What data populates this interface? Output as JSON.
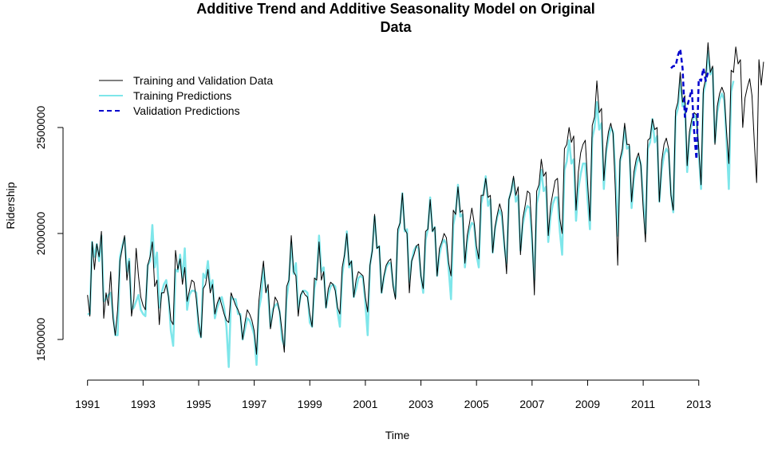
{
  "chart_data": {
    "type": "line",
    "title_line1": "Additive Trend and Additive Seasonality Model on Original",
    "title_line2": "Data",
    "xlabel": "Time",
    "ylabel": "Ridership",
    "xlim": [
      1991,
      2013.5
    ],
    "ylim": [
      1350000,
      2900000
    ],
    "x_ticks": [
      1991,
      1993,
      1995,
      1997,
      1999,
      2001,
      2003,
      2005,
      2007,
      2009,
      2011,
      2013
    ],
    "x_tick_labels": [
      "1991",
      "1993",
      "1995",
      "1997",
      "1999",
      "2001",
      "2003",
      "2005",
      "2007",
      "2009",
      "2011",
      "2013"
    ],
    "y_ticks": [
      1500000,
      2000000,
      2500000
    ],
    "y_tick_labels": [
      "1500000",
      "2000000",
      "2500000"
    ],
    "legend_position": "top-left",
    "series": [
      {
        "name": "Training and Validation Data",
        "color": "#000000",
        "style": "solid",
        "start": 1991.0,
        "step": 0.08333,
        "values": [
          1710000,
          1610000,
          1960000,
          1830000,
          1950000,
          1890000,
          2010000,
          1600000,
          1720000,
          1660000,
          1820000,
          1600000,
          1520000,
          1640000,
          1870000,
          1930000,
          1990000,
          1780000,
          1870000,
          1610000,
          1690000,
          1930000,
          1800000,
          1700000,
          1660000,
          1640000,
          1850000,
          1890000,
          1960000,
          1750000,
          1780000,
          1570000,
          1720000,
          1720000,
          1760000,
          1700000,
          1590000,
          1570000,
          1920000,
          1830000,
          1880000,
          1760000,
          1840000,
          1680000,
          1730000,
          1780000,
          1770000,
          1690000,
          1580000,
          1510000,
          1740000,
          1760000,
          1830000,
          1720000,
          1760000,
          1620000,
          1670000,
          1700000,
          1660000,
          1620000,
          1590000,
          1580000,
          1720000,
          1690000,
          1660000,
          1640000,
          1610000,
          1500000,
          1580000,
          1640000,
          1620000,
          1590000,
          1540000,
          1430000,
          1680000,
          1780000,
          1870000,
          1720000,
          1760000,
          1550000,
          1620000,
          1700000,
          1680000,
          1630000,
          1540000,
          1440000,
          1750000,
          1780000,
          1990000,
          1820000,
          1800000,
          1610000,
          1710000,
          1730000,
          1710000,
          1700000,
          1620000,
          1560000,
          1790000,
          1780000,
          1960000,
          1780000,
          1820000,
          1650000,
          1740000,
          1770000,
          1760000,
          1730000,
          1650000,
          1620000,
          1840000,
          1900000,
          2000000,
          1850000,
          1870000,
          1700000,
          1780000,
          1820000,
          1810000,
          1800000,
          1700000,
          1630000,
          1850000,
          1920000,
          2090000,
          1930000,
          1940000,
          1720000,
          1800000,
          1850000,
          1870000,
          1880000,
          1750000,
          1690000,
          2020000,
          2050000,
          2190000,
          2020000,
          2000000,
          1720000,
          1870000,
          1900000,
          1940000,
          1950000,
          1800000,
          1740000,
          2010000,
          2020000,
          2160000,
          2010000,
          2030000,
          1800000,
          1930000,
          1960000,
          2000000,
          1980000,
          1860000,
          1800000,
          2110000,
          2090000,
          2220000,
          2100000,
          2110000,
          1860000,
          1990000,
          2050000,
          2120000,
          2050000,
          1940000,
          1880000,
          2180000,
          2180000,
          2260000,
          2170000,
          2180000,
          1910000,
          2030000,
          2090000,
          2140000,
          2100000,
          1960000,
          1810000,
          2160000,
          2200000,
          2270000,
          2180000,
          2220000,
          1900000,
          2070000,
          2130000,
          2200000,
          2190000,
          2000000,
          1710000,
          2200000,
          2230000,
          2350000,
          2270000,
          2290000,
          1990000,
          2130000,
          2190000,
          2250000,
          2260000,
          2070000,
          2000000,
          2400000,
          2420000,
          2500000,
          2430000,
          2460000,
          2110000,
          2290000,
          2380000,
          2420000,
          2440000,
          2240000,
          2060000,
          2510000,
          2550000,
          2720000,
          2570000,
          2590000,
          2250000,
          2400000,
          2480000,
          2520000,
          2470000,
          2200000,
          1850000,
          2350000,
          2400000,
          2520000,
          2420000,
          2420000,
          2150000,
          2290000,
          2350000,
          2380000,
          2320000,
          2120000,
          1960000,
          2440000,
          2450000,
          2540000,
          2490000,
          2500000,
          2150000,
          2340000,
          2420000,
          2450000,
          2400000,
          2180000,
          2110000,
          2580000,
          2620000,
          2760000,
          2620000,
          2650000,
          2320000,
          2480000,
          2540000,
          2570000,
          2560000,
          2400000,
          2230000,
          2680000,
          2730000,
          2900000,
          2760000,
          2790000,
          2420000,
          2600000,
          2660000,
          2690000,
          2660000,
          2480000,
          2330000,
          2770000,
          2760000,
          2880000,
          2800000,
          2820000,
          2500000,
          2640000,
          2690000,
          2730000,
          2650000,
          2430000,
          2240000,
          2820000,
          2700000,
          2810000
        ]
      },
      {
        "name": "Training Predictions",
        "color": "#7ee6ea",
        "style": "solid",
        "start": 1991.0,
        "step": 0.08333,
        "values": [
          1620000,
          1620000,
          1960000,
          1890000,
          1950000,
          1870000,
          1990000,
          1680000,
          1690000,
          1710000,
          1720000,
          1620000,
          1520000,
          1520000,
          1890000,
          1940000,
          1980000,
          1820000,
          1880000,
          1640000,
          1650000,
          1680000,
          1710000,
          1640000,
          1620000,
          1610000,
          1850000,
          1870000,
          2040000,
          1840000,
          1910000,
          1650000,
          1720000,
          1760000,
          1780000,
          1700000,
          1540000,
          1470000,
          1830000,
          1820000,
          1900000,
          1790000,
          1930000,
          1640000,
          1710000,
          1730000,
          1730000,
          1720000,
          1540000,
          1510000,
          1810000,
          1790000,
          1870000,
          1740000,
          1780000,
          1600000,
          1650000,
          1680000,
          1700000,
          1650000,
          1560000,
          1370000,
          1700000,
          1690000,
          1690000,
          1620000,
          1620000,
          1500000,
          1550000,
          1600000,
          1590000,
          1560000,
          1520000,
          1380000,
          1640000,
          1700000,
          1840000,
          1740000,
          1720000,
          1560000,
          1640000,
          1660000,
          1670000,
          1630000,
          1500000,
          1470000,
          1690000,
          1780000,
          1960000,
          1810000,
          1860000,
          1640000,
          1700000,
          1730000,
          1730000,
          1720000,
          1580000,
          1560000,
          1740000,
          1800000,
          1990000,
          1820000,
          1840000,
          1650000,
          1710000,
          1750000,
          1760000,
          1750000,
          1630000,
          1560000,
          1800000,
          1890000,
          2010000,
          1840000,
          1870000,
          1700000,
          1740000,
          1790000,
          1800000,
          1790000,
          1670000,
          1520000,
          1850000,
          1920000,
          2080000,
          1930000,
          1940000,
          1720000,
          1790000,
          1840000,
          1860000,
          1860000,
          1760000,
          1700000,
          2000000,
          2050000,
          2190000,
          2010000,
          2020000,
          1770000,
          1870000,
          1920000,
          1940000,
          1930000,
          1800000,
          1720000,
          1970000,
          2020000,
          2170000,
          2010000,
          2030000,
          1800000,
          1900000,
          1950000,
          1970000,
          1950000,
          1830000,
          1690000,
          2040000,
          2100000,
          2230000,
          2080000,
          2090000,
          1840000,
          1960000,
          2020000,
          2050000,
          2040000,
          1900000,
          1840000,
          2140000,
          2190000,
          2270000,
          2130000,
          2160000,
          1910000,
          2020000,
          2080000,
          2110000,
          2080000,
          1940000,
          1860000,
          2160000,
          2200000,
          2260000,
          2150000,
          2180000,
          1920000,
          2040000,
          2100000,
          2130000,
          2120000,
          1960000,
          1780000,
          2140000,
          2190000,
          2300000,
          2200000,
          2220000,
          1960000,
          2080000,
          2140000,
          2170000,
          2170000,
          2010000,
          1900000,
          2300000,
          2340000,
          2440000,
          2330000,
          2350000,
          2060000,
          2210000,
          2280000,
          2330000,
          2330000,
          2160000,
          2020000,
          2450000,
          2500000,
          2620000,
          2490000,
          2520000,
          2210000,
          2380000,
          2450000,
          2500000,
          2480000,
          2280000,
          1990000,
          2340000,
          2380000,
          2500000,
          2400000,
          2410000,
          2120000,
          2260000,
          2320000,
          2360000,
          2330000,
          2160000,
          2000000,
          2400000,
          2430000,
          2540000,
          2430000,
          2460000,
          2150000,
          2300000,
          2370000,
          2400000,
          2380000,
          2190000,
          2100000,
          2550000,
          2590000,
          2730000,
          2600000,
          2620000,
          2290000,
          2460000,
          2520000,
          2560000,
          2540000,
          2380000,
          2210000,
          2660000,
          2710000,
          2860000,
          2750000,
          2780000,
          2430000,
          2570000,
          2630000,
          2660000,
          2630000,
          2440000,
          2210000,
          2670000,
          2720000
        ]
      },
      {
        "name": "Validation Predictions",
        "color": "#0000cd",
        "style": "dashed",
        "start": 2012.0,
        "step": 0.08333,
        "values": [
          2780000,
          2790000,
          2790000,
          2840000,
          2870000,
          2780000,
          2550000,
          2600000,
          2640000,
          2680000,
          2480000,
          2350000,
          2730000,
          2720000,
          2780000,
          2720000,
          2760000
        ]
      }
    ]
  }
}
